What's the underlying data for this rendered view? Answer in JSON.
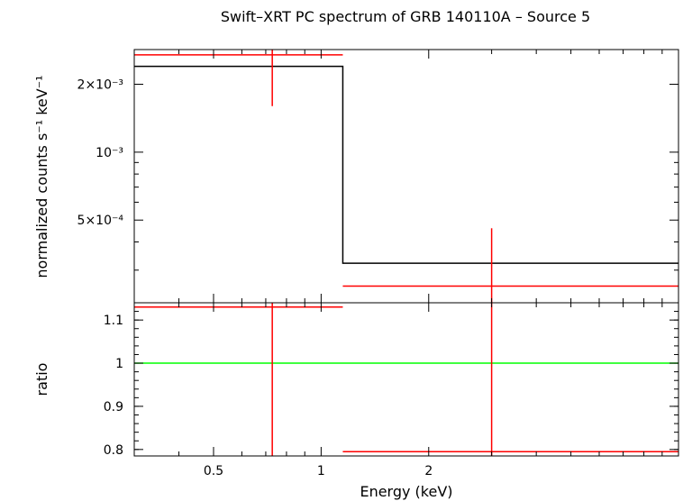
{
  "chart_data": [
    {
      "type": "line",
      "title": "Swift–XRT PC spectrum of GRB 140110A – Source 5",
      "xlabel": "Energy (keV)",
      "ylabel": "normalized counts s⁻¹ keV⁻¹",
      "xscale": "log",
      "yscale": "log",
      "xlim": [
        0.3,
        10.0
      ],
      "ylim": [
        0.000215,
        0.00285
      ],
      "grid": false,
      "legend": "none",
      "x_ticks": [
        {
          "value": 0.5,
          "label": "0.5"
        },
        {
          "value": 1,
          "label": "1"
        },
        {
          "value": 2,
          "label": "2"
        }
      ],
      "y_ticks": [
        {
          "value": 0.0005,
          "label": "5×10⁻⁴"
        },
        {
          "value": 0.001,
          "label": "10⁻³"
        },
        {
          "value": 0.002,
          "label": "2×10⁻³"
        }
      ],
      "data_points": {
        "color": "#ff0000",
        "points": [
          {
            "x": 0.73,
            "x_low": 0.3,
            "x_high": 1.15,
            "y": 0.0027,
            "y_low": 0.0016,
            "y_high": 0.00285
          },
          {
            "x": 3.0,
            "x_low": 1.15,
            "x_high": 10.0,
            "y": 0.000255,
            "y_low": 0.000215,
            "y_high": 0.00046
          }
        ]
      },
      "model": {
        "color": "#000000",
        "steps": [
          {
            "x_low": 0.3,
            "x_high": 1.15,
            "y": 0.0024
          },
          {
            "x_low": 1.15,
            "x_high": 10.0,
            "y": 0.000322
          }
        ]
      }
    },
    {
      "type": "line",
      "xlabel": "Energy (keV)",
      "ylabel": "ratio",
      "xscale": "log",
      "xlim": [
        0.3,
        10.0
      ],
      "ylim": [
        0.785,
        1.14
      ],
      "grid": false,
      "legend": "none",
      "x_ticks": [
        {
          "value": 0.5,
          "label": "0.5"
        },
        {
          "value": 1,
          "label": "1"
        },
        {
          "value": 2,
          "label": "2"
        }
      ],
      "y_ticks": [
        {
          "value": 0.8,
          "label": "0.8"
        },
        {
          "value": 0.9,
          "label": "0.9"
        },
        {
          "value": 1.0,
          "label": "1"
        },
        {
          "value": 1.1,
          "label": "1.1"
        }
      ],
      "reference_line": {
        "y": 1.0,
        "color": "#00ff00"
      },
      "data_points": {
        "color": "#ff0000",
        "points": [
          {
            "x": 0.73,
            "x_low": 0.3,
            "x_high": 1.15,
            "y": 1.13,
            "y_low": 0.785,
            "y_high": 1.14
          },
          {
            "x": 3.0,
            "x_low": 1.15,
            "x_high": 10.0,
            "y": 0.795,
            "y_low": 0.785,
            "y_high": 1.14
          }
        ]
      }
    }
  ]
}
